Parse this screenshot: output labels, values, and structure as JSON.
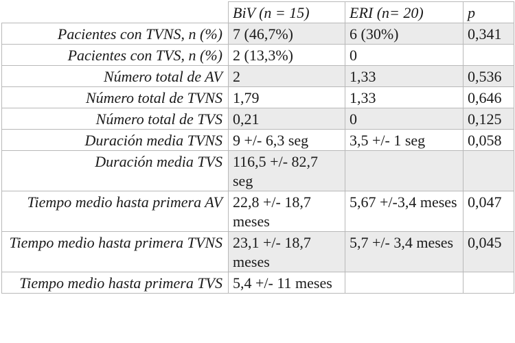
{
  "table": {
    "headers": [
      "",
      "BiV (n = 15)",
      "ERI (n= 20)",
      "p"
    ],
    "rows": [
      {
        "label": "Pacientes con TVNS, n (%)",
        "biv": "7 (46,7%)",
        "eri": "6 (30%)",
        "p": "0,341",
        "shaded": true
      },
      {
        "label": "Pacientes con TVS, n (%)",
        "biv": "2 (13,3%)",
        "eri": "0",
        "p": "",
        "shaded": false
      },
      {
        "label": "Número total de AV",
        "biv": "2",
        "eri": "1,33",
        "p": "0,536",
        "shaded": true
      },
      {
        "label": "Número total de TVNS",
        "biv": "1,79",
        "eri": "1,33",
        "p": "0,646",
        "shaded": false
      },
      {
        "label": "Número total de TVS",
        "biv": "0,21",
        "eri": "0",
        "p": "0,125",
        "shaded": true
      },
      {
        "label": "Duración media TVNS",
        "biv": "9 +/- 6,3 seg",
        "eri": "3,5 +/- 1 seg",
        "p": "0,058",
        "shaded": false
      },
      {
        "label": "Duración media TVS",
        "biv": "116,5 +/- 82,7 seg",
        "eri": "",
        "p": "",
        "shaded": true
      },
      {
        "label": "Tiempo medio hasta primera AV",
        "biv": "22,8 +/- 18,7 meses",
        "eri": "5,67 +/-3,4 meses",
        "p": "0,047",
        "shaded": false
      },
      {
        "label": "Tiempo medio hasta primera TVNS",
        "biv": "23,1 +/- 18,7 meses",
        "eri": "5,7 +/- 3,4 meses",
        "p": "0,045",
        "shaded": true
      },
      {
        "label": "Tiempo medio hasta primera TVS",
        "biv": "5,4 +/- 11 meses",
        "eri": "",
        "p": "",
        "shaded": false
      }
    ]
  }
}
